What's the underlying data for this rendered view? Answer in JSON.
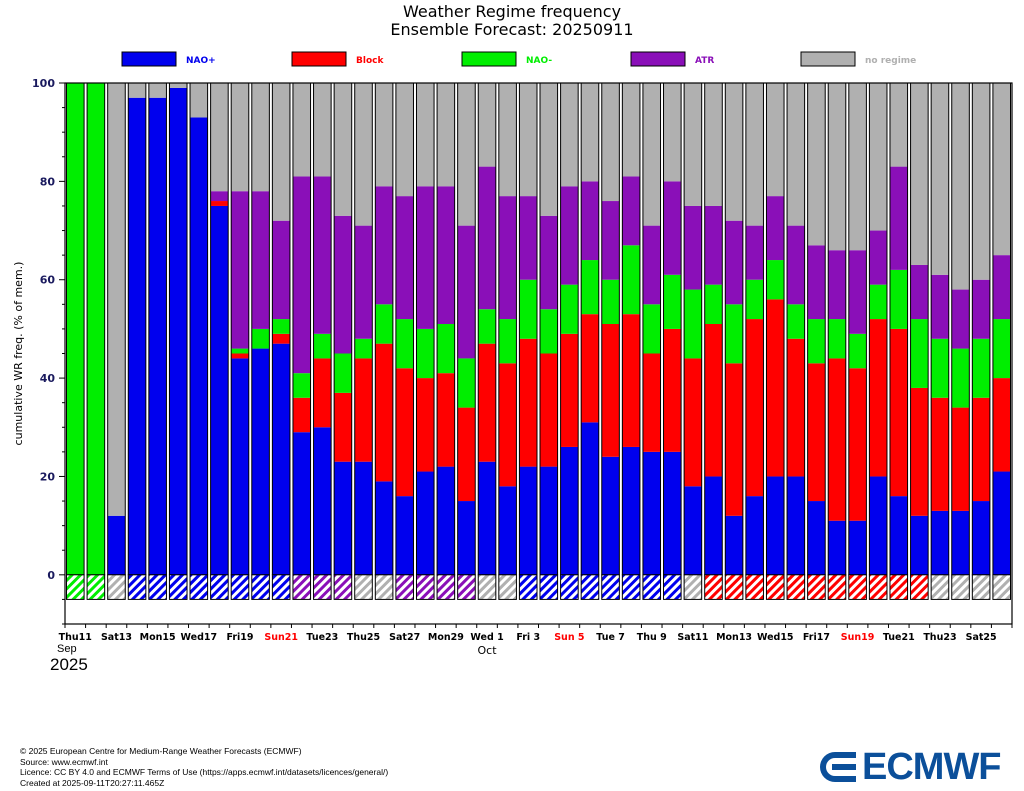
{
  "title": "Weather Regime frequency",
  "subtitle": "Ensemble Forecast: 20250911",
  "colors": {
    "NAO+": "#0000ee",
    "Block": "#ff0000",
    "NAO-": "#00ee00",
    "ATR": "#8a0fb8",
    "no regime": "#b0b0b0",
    "red_label": "#ff0000"
  },
  "chart_data": {
    "type": "bar",
    "stacked": true,
    "ylabel": "cumulative WR freq. (% of mem.)",
    "ylim": [
      -10,
      100
    ],
    "yticks": [
      0,
      20,
      40,
      60,
      80,
      100
    ],
    "legend": [
      "NAO+",
      "Block",
      "NAO-",
      "ATR",
      "no regime"
    ],
    "legend_position": "top",
    "x_tick_labels": [
      {
        "index": 0,
        "text": "Thu11",
        "red": false
      },
      {
        "index": 2,
        "text": "Sat13",
        "red": false
      },
      {
        "index": 4,
        "text": "Mon15",
        "red": false
      },
      {
        "index": 6,
        "text": "Wed17",
        "red": false
      },
      {
        "index": 8,
        "text": "Fri19",
        "red": false
      },
      {
        "index": 10,
        "text": "Sun21",
        "red": true
      },
      {
        "index": 12,
        "text": "Tue23",
        "red": false
      },
      {
        "index": 14,
        "text": "Thu25",
        "red": false
      },
      {
        "index": 16,
        "text": "Sat27",
        "red": false
      },
      {
        "index": 18,
        "text": "Mon29",
        "red": false
      },
      {
        "index": 20,
        "text": "Wed 1",
        "red": false
      },
      {
        "index": 22,
        "text": "Fri 3",
        "red": false
      },
      {
        "index": 24,
        "text": "Sun 5",
        "red": true
      },
      {
        "index": 26,
        "text": "Tue 7",
        "red": false
      },
      {
        "index": 28,
        "text": "Thu 9",
        "red": false
      },
      {
        "index": 30,
        "text": "Sat11",
        "red": false
      },
      {
        "index": 32,
        "text": "Mon13",
        "red": false
      },
      {
        "index": 34,
        "text": "Wed15",
        "red": false
      },
      {
        "index": 36,
        "text": "Fri17",
        "red": false
      },
      {
        "index": 38,
        "text": "Sun19",
        "red": true
      },
      {
        "index": 40,
        "text": "Tue21",
        "red": false
      },
      {
        "index": 42,
        "text": "Thu23",
        "red": false
      },
      {
        "index": 44,
        "text": "Sat25",
        "red": false
      }
    ],
    "month_labels": {
      "sep": "Sep",
      "oct": "Oct",
      "year": "2025"
    },
    "bars": [
      {
        "nao_plus": 0,
        "block": 0,
        "nao_minus": 100,
        "atr": 0,
        "dominant": "NAO-"
      },
      {
        "nao_plus": 0,
        "block": 0,
        "nao_minus": 100,
        "atr": 0,
        "dominant": "NAO-"
      },
      {
        "nao_plus": 12,
        "block": 0,
        "nao_minus": 0,
        "atr": 0,
        "dominant": "no regime"
      },
      {
        "nao_plus": 97,
        "block": 0,
        "nao_minus": 0,
        "atr": 0,
        "dominant": "NAO+"
      },
      {
        "nao_plus": 97,
        "block": 0,
        "nao_minus": 0,
        "atr": 0,
        "dominant": "NAO+"
      },
      {
        "nao_plus": 99,
        "block": 0,
        "nao_minus": 0,
        "atr": 0,
        "dominant": "NAO+"
      },
      {
        "nao_plus": 93,
        "block": 0,
        "nao_minus": 0,
        "atr": 0,
        "dominant": "NAO+"
      },
      {
        "nao_plus": 75,
        "block": 1,
        "nao_minus": 0,
        "atr": 2,
        "dominant": "NAO+"
      },
      {
        "nao_plus": 44,
        "block": 1,
        "nao_minus": 1,
        "atr": 32,
        "dominant": "NAO+"
      },
      {
        "nao_plus": 46,
        "block": 0,
        "nao_minus": 4,
        "atr": 28,
        "dominant": "NAO+"
      },
      {
        "nao_plus": 47,
        "block": 2,
        "nao_minus": 3,
        "atr": 20,
        "dominant": "NAO+"
      },
      {
        "nao_plus": 29,
        "block": 7,
        "nao_minus": 5,
        "atr": 40,
        "dominant": "ATR"
      },
      {
        "nao_plus": 30,
        "block": 14,
        "nao_minus": 5,
        "atr": 32,
        "dominant": "ATR"
      },
      {
        "nao_plus": 23,
        "block": 14,
        "nao_minus": 8,
        "atr": 28,
        "dominant": "ATR"
      },
      {
        "nao_plus": 23,
        "block": 21,
        "nao_minus": 4,
        "atr": 23,
        "dominant": "no regime"
      },
      {
        "nao_plus": 19,
        "block": 28,
        "nao_minus": 8,
        "atr": 24,
        "dominant": "no regime"
      },
      {
        "nao_plus": 16,
        "block": 26,
        "nao_minus": 10,
        "atr": 25,
        "dominant": "ATR"
      },
      {
        "nao_plus": 21,
        "block": 19,
        "nao_minus": 10,
        "atr": 29,
        "dominant": "ATR"
      },
      {
        "nao_plus": 22,
        "block": 19,
        "nao_minus": 10,
        "atr": 28,
        "dominant": "ATR"
      },
      {
        "nao_plus": 15,
        "block": 19,
        "nao_minus": 10,
        "atr": 27,
        "dominant": "ATR"
      },
      {
        "nao_plus": 23,
        "block": 24,
        "nao_minus": 7,
        "atr": 29,
        "dominant": "no regime"
      },
      {
        "nao_plus": 18,
        "block": 25,
        "nao_minus": 9,
        "atr": 25,
        "dominant": "no regime"
      },
      {
        "nao_plus": 22,
        "block": 26,
        "nao_minus": 12,
        "atr": 17,
        "dominant": "NAO+"
      },
      {
        "nao_plus": 22,
        "block": 23,
        "nao_minus": 9,
        "atr": 19,
        "dominant": "NAO+"
      },
      {
        "nao_plus": 26,
        "block": 23,
        "nao_minus": 10,
        "atr": 20,
        "dominant": "NAO+"
      },
      {
        "nao_plus": 31,
        "block": 22,
        "nao_minus": 11,
        "atr": 16,
        "dominant": "NAO+"
      },
      {
        "nao_plus": 24,
        "block": 27,
        "nao_minus": 9,
        "atr": 16,
        "dominant": "NAO+"
      },
      {
        "nao_plus": 26,
        "block": 27,
        "nao_minus": 14,
        "atr": 14,
        "dominant": "NAO+"
      },
      {
        "nao_plus": 25,
        "block": 20,
        "nao_minus": 10,
        "atr": 16,
        "dominant": "NAO+"
      },
      {
        "nao_plus": 25,
        "block": 25,
        "nao_minus": 11,
        "atr": 19,
        "dominant": "NAO+"
      },
      {
        "nao_plus": 18,
        "block": 26,
        "nao_minus": 14,
        "atr": 17,
        "dominant": "no regime"
      },
      {
        "nao_plus": 20,
        "block": 31,
        "nao_minus": 8,
        "atr": 16,
        "dominant": "Block"
      },
      {
        "nao_plus": 12,
        "block": 31,
        "nao_minus": 12,
        "atr": 17,
        "dominant": "Block"
      },
      {
        "nao_plus": 16,
        "block": 36,
        "nao_minus": 8,
        "atr": 11,
        "dominant": "Block"
      },
      {
        "nao_plus": 20,
        "block": 36,
        "nao_minus": 8,
        "atr": 13,
        "dominant": "Block"
      },
      {
        "nao_plus": 20,
        "block": 28,
        "nao_minus": 7,
        "atr": 16,
        "dominant": "Block"
      },
      {
        "nao_plus": 15,
        "block": 28,
        "nao_minus": 9,
        "atr": 15,
        "dominant": "Block"
      },
      {
        "nao_plus": 11,
        "block": 33,
        "nao_minus": 8,
        "atr": 14,
        "dominant": "Block"
      },
      {
        "nao_plus": 11,
        "block": 31,
        "nao_minus": 7,
        "atr": 17,
        "dominant": "Block"
      },
      {
        "nao_plus": 20,
        "block": 32,
        "nao_minus": 7,
        "atr": 11,
        "dominant": "Block"
      },
      {
        "nao_plus": 16,
        "block": 34,
        "nao_minus": 12,
        "atr": 21,
        "dominant": "Block"
      },
      {
        "nao_plus": 12,
        "block": 26,
        "nao_minus": 14,
        "atr": 11,
        "dominant": "Block"
      },
      {
        "nao_plus": 13,
        "block": 23,
        "nao_minus": 12,
        "atr": 13,
        "dominant": "no regime"
      },
      {
        "nao_plus": 13,
        "block": 21,
        "nao_minus": 12,
        "atr": 12,
        "dominant": "no regime"
      },
      {
        "nao_plus": 15,
        "block": 21,
        "nao_minus": 12,
        "atr": 12,
        "dominant": "no regime"
      },
      {
        "nao_plus": 21,
        "block": 19,
        "nao_minus": 12,
        "atr": 13,
        "dominant": "no regime"
      }
    ]
  },
  "footer": {
    "line1": "© 2025 European Centre for Medium-Range Weather Forecasts (ECMWF)",
    "line2": "Source: www.ecmwf.int",
    "line3": "Licence: CC BY 4.0 and ECMWF Terms of Use (https://apps.ecmwf.int/datasets/licences/general/)",
    "line4": "Created at 2025-09-11T20:27:11.465Z"
  },
  "logo": {
    "text": "ECMWF"
  }
}
